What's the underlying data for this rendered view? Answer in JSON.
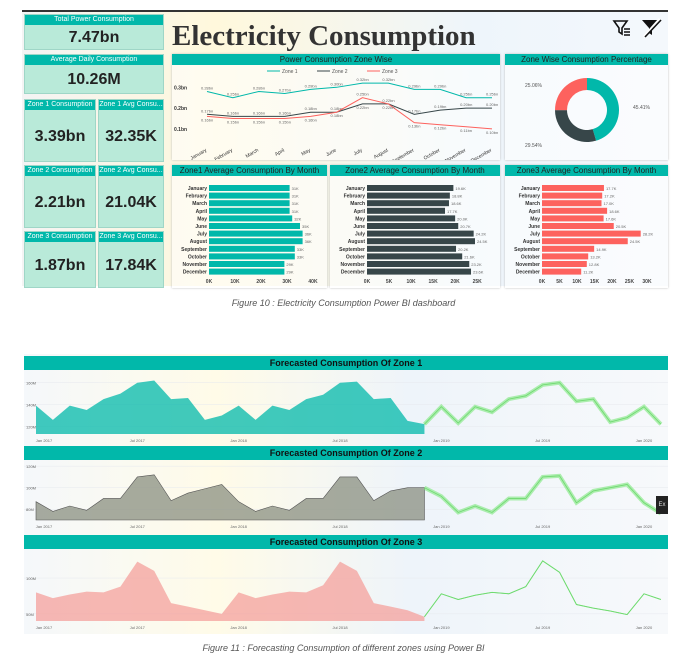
{
  "dashboard": {
    "title": "Electricity Consumption",
    "icons": [
      "filter-list-icon",
      "clear-filter-icon"
    ],
    "cards": [
      {
        "label": "Total Power Consumption",
        "value": "7.47bn"
      },
      {
        "label": "Average Daily Consumption",
        "value": "10.26M"
      },
      {
        "label": "Zone 1 Consumption",
        "value": "3.39bn"
      },
      {
        "label": "Zone 1 Avg Consu...",
        "value": "32.35K"
      },
      {
        "label": "Zone 2 Consumption",
        "value": "2.21bn"
      },
      {
        "label": "Zone 2 Avg Consu...",
        "value": "21.04K"
      },
      {
        "label": "Zone 3 Consumption",
        "value": "1.87bn"
      },
      {
        "label": "Zone 3 Avg Consu...",
        "value": "17.84K"
      }
    ],
    "colors": {
      "zone1": "#01B8AA",
      "zone2": "#374649",
      "zone3": "#FD625E",
      "forecast": "#7BE87B"
    }
  },
  "chart_data": [
    {
      "id": "line",
      "type": "line",
      "title": "Power Consumption Zone Wise",
      "categories": [
        "January",
        "February",
        "March",
        "April",
        "May",
        "June",
        "July",
        "August",
        "September",
        "October",
        "November",
        "December"
      ],
      "yticks": [
        "0.3bn",
        "0.2bn",
        "0.1bn"
      ],
      "ylim": [
        0.08,
        0.34
      ],
      "series": [
        {
          "name": "Zone 1",
          "values": [
            0.28,
            0.25,
            0.28,
            0.27,
            0.29,
            0.3,
            0.32,
            0.32,
            0.29,
            0.29,
            0.25,
            0.25
          ],
          "labels": [
            "0.28bn",
            "0.25bn",
            "0.28bn",
            "0.27bn",
            "0.29bn",
            "0.30bn",
            "0.32bn",
            "0.32bn",
            "0.29bn",
            "0.29bn",
            "0.25bn",
            "0.25bn"
          ]
        },
        {
          "name": "Zone 2",
          "values": [
            0.17,
            0.16,
            0.16,
            0.16,
            0.18,
            0.18,
            0.22,
            0.22,
            0.17,
            0.19,
            0.2,
            0.2
          ],
          "labels": [
            "0.17bn",
            "0.16bn",
            "0.16bn",
            "0.16bn",
            "0.18bn",
            "0.18bn",
            "0.22bn",
            "0.22bn",
            "0.17bn",
            "0.19bn",
            "0.20bn",
            "0.20bn"
          ]
        },
        {
          "name": "Zone 3",
          "values": [
            0.16,
            0.15,
            0.15,
            0.15,
            0.16,
            0.18,
            0.25,
            0.22,
            0.13,
            0.12,
            0.11,
            0.1
          ],
          "labels": [
            "0.16bn",
            "0.15bn",
            "0.15bn",
            "0.15bn",
            "0.16bn",
            "0.18bn",
            "0.25bn",
            "0.22bn",
            "0.13bn",
            "0.12bn",
            "0.11bn",
            "0.10bn"
          ]
        }
      ]
    },
    {
      "id": "pie",
      "type": "pie",
      "title": "Zone Wise Consumption Percentage",
      "slices": [
        {
          "name": "Zone 1",
          "value": 45.41,
          "label": "45.41%"
        },
        {
          "name": "Zone 2",
          "value": 29.54,
          "label": "29.54%"
        },
        {
          "name": "Zone 3",
          "value": 25.06,
          "label": "25.06%"
        }
      ]
    },
    {
      "id": "bar1",
      "type": "bar",
      "title": "Zone1 Average Consumption By Month",
      "xticks": [
        "0K",
        "10K",
        "20K",
        "30K",
        "40K"
      ],
      "xlim": [
        0,
        40
      ],
      "categories": [
        "January",
        "February",
        "March",
        "April",
        "May",
        "June",
        "July",
        "August",
        "September",
        "October",
        "November",
        "December"
      ],
      "values": [
        31,
        31,
        31,
        31,
        32,
        35,
        36,
        36,
        33,
        33,
        29,
        29
      ],
      "labels": [
        "31K",
        "31K",
        "31K",
        "31K",
        "32K",
        "35K",
        "36K",
        "36K",
        "33K",
        "33K",
        "29K",
        "29K"
      ]
    },
    {
      "id": "bar2",
      "type": "bar",
      "title": "Zone2 Average Consumption By Month",
      "xticks": [
        "0K",
        "5K",
        "10K",
        "15K",
        "20K",
        "25K"
      ],
      "xlim": [
        0,
        27
      ],
      "categories": [
        "January",
        "February",
        "March",
        "April",
        "May",
        "June",
        "July",
        "August",
        "September",
        "October",
        "November",
        "December"
      ],
      "values": [
        19.6,
        18.8,
        18.6,
        17.7,
        20.0,
        20.7,
        24.2,
        24.5,
        20.2,
        21.6,
        23.2,
        23.6
      ],
      "labels": [
        "19.6K",
        "18.8K",
        "18.6K",
        "17.7K",
        "20.0K",
        "20.7K",
        "24.2K",
        "24.5K",
        "20.2K",
        "21.6K",
        "23.2K",
        "23.6K"
      ]
    },
    {
      "id": "bar3",
      "type": "bar",
      "title": "Zone3 Average Consumption By Month",
      "xticks": [
        "0K",
        "5K",
        "10K",
        "15K",
        "20K",
        "25K",
        "30K"
      ],
      "xlim": [
        0,
        32
      ],
      "categories": [
        "January",
        "February",
        "March",
        "April",
        "May",
        "June",
        "July",
        "August",
        "September",
        "October",
        "November",
        "December"
      ],
      "values": [
        17.7,
        17.2,
        17.0,
        18.6,
        17.6,
        20.5,
        28.2,
        24.5,
        14.9,
        13.2,
        12.8,
        11.2
      ],
      "labels": [
        "17.7K",
        "17.2K",
        "17.0K",
        "18.6K",
        "17.6K",
        "20.5K",
        "28.2K",
        "24.5K",
        "14.9K",
        "13.2K",
        "12.8K",
        "11.2K"
      ]
    },
    {
      "id": "fc1",
      "type": "area",
      "title": "Forecasted Consumption Of Zone 1",
      "xticks": [
        "Jan 2017",
        "Jul 2017",
        "Jan 2018",
        "Jul 2018",
        "Jan 2019",
        "Jul 2019",
        "Jan 2020"
      ],
      "yticks": [
        {
          "v": 160,
          "label": "160M"
        },
        {
          "v": 140,
          "label": "140M"
        },
        {
          "v": 120,
          "label": "120M"
        }
      ],
      "ylim": [
        113,
        168
      ],
      "actual": [
        139,
        126,
        139,
        135,
        145,
        150,
        160,
        162,
        145,
        146,
        126,
        130,
        139,
        126,
        139,
        135,
        145,
        149,
        160,
        161,
        145,
        146,
        125,
        122
      ],
      "forecast": [
        122,
        138,
        123,
        138,
        133,
        145,
        148,
        158,
        160,
        143,
        145,
        124,
        128,
        138,
        122
      ]
    },
    {
      "id": "fc2",
      "type": "area",
      "title": "Forecasted Consumption Of Zone 2",
      "xticks": [
        "Jan 2017",
        "Jul 2017",
        "Jan 2018",
        "Jul 2018",
        "Jan 2019",
        "Jul 2019",
        "Jan 2020"
      ],
      "yticks": [
        {
          "v": 120,
          "label": "120M"
        },
        {
          "v": 100,
          "label": "100M"
        },
        {
          "v": 80,
          "label": "80M"
        }
      ],
      "ylim": [
        70,
        122
      ],
      "actual": [
        87,
        78,
        83,
        79,
        90,
        90,
        110,
        112,
        88,
        95,
        99,
        103,
        87,
        78,
        83,
        79,
        90,
        90,
        110,
        110,
        88,
        97,
        100,
        100
      ],
      "forecast": [
        100,
        92,
        77,
        83,
        77,
        90,
        90,
        110,
        111,
        86,
        97,
        100,
        103,
        86,
        76
      ]
    },
    {
      "id": "fc3",
      "type": "area",
      "title": "Forecasted Consumption Of Zone 3",
      "xticks": [
        "Jan 2017",
        "Jul 2017",
        "Jan 2018",
        "Jul 2018",
        "Jan 2019",
        "Jul 2019",
        "Jan 2020"
      ],
      "yticks": [
        {
          "v": 100,
          "label": "100M"
        },
        {
          "v": 50,
          "label": "50M"
        }
      ],
      "ylim": [
        40,
        135
      ],
      "actual": [
        80,
        72,
        77,
        81,
        80,
        88,
        123,
        110,
        65,
        60,
        55,
        50,
        80,
        72,
        77,
        81,
        80,
        90,
        123,
        110,
        65,
        60,
        55,
        46
      ],
      "forecast": [
        46,
        78,
        70,
        76,
        80,
        78,
        88,
        124,
        108,
        63,
        58,
        54,
        49,
        78,
        70
      ]
    }
  ],
  "captions": {
    "fig10": "Figure 10 : Electricity Consumption Power BI dashboard",
    "fig11": "Figure 11 : Forecasting Consumption of different zones using Power BI"
  },
  "tooltip": "Ex"
}
